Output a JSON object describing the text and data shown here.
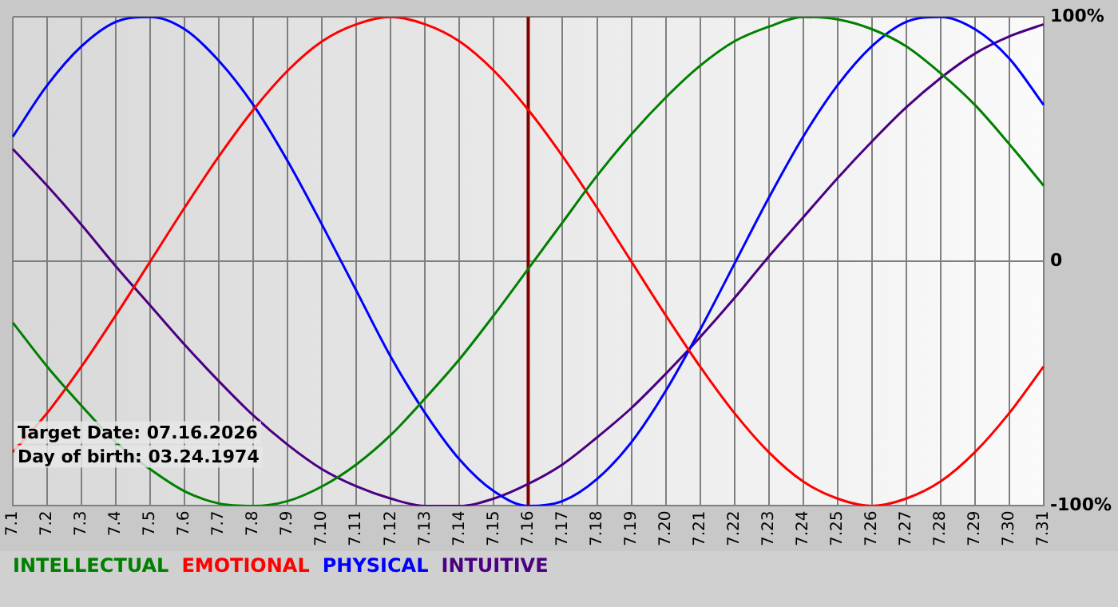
{
  "chart_data": {
    "type": "line",
    "categories": [
      "7.1",
      "7.2",
      "7.3",
      "7.4",
      "7.5",
      "7.6",
      "7.7",
      "7.8",
      "7.9",
      "7.10",
      "7.11",
      "7.12",
      "7.13",
      "7.14",
      "7.15",
      "7.16",
      "7.17",
      "7.18",
      "7.19",
      "7.20",
      "7.21",
      "7.22",
      "7.23",
      "7.24",
      "7.25",
      "7.26",
      "7.27",
      "7.28",
      "7.29",
      "7.30",
      "7.31"
    ],
    "series": [
      {
        "name": "INTELLECTUAL",
        "color": "#008000",
        "values": [
          -25,
          -43,
          -59,
          -74,
          -85,
          -94,
          -99,
          -100,
          -98,
          -92,
          -83,
          -71,
          -56,
          -40,
          -22,
          -3,
          16,
          35,
          52,
          67,
          80,
          90,
          96,
          100,
          99,
          95,
          88,
          77,
          64,
          48,
          31
        ]
      },
      {
        "name": "EMOTIONAL",
        "color": "#ff0000",
        "values": [
          -78,
          -62,
          -43,
          -22,
          0,
          22,
          43,
          62,
          78,
          90,
          97,
          100,
          97,
          90,
          78,
          62,
          43,
          22,
          0,
          -22,
          -43,
          -62,
          -78,
          -90,
          -97,
          -100,
          -97,
          -90,
          -78,
          -62,
          -43
        ]
      },
      {
        "name": "PHYSICAL",
        "color": "#0000ff",
        "values": [
          51,
          72,
          88,
          98,
          100,
          95,
          82,
          64,
          41,
          15,
          -12,
          -39,
          -62,
          -81,
          -94,
          -100,
          -98,
          -89,
          -74,
          -53,
          -28,
          -1,
          26,
          51,
          72,
          88,
          98,
          100,
          95,
          83,
          64
        ]
      },
      {
        "name": "INTUITIVE",
        "color": "#4b0082",
        "values": [
          46,
          31,
          15,
          -2,
          -18,
          -34,
          -49,
          -63,
          -75,
          -85,
          -92,
          -97,
          -100,
          -100,
          -97,
          -91,
          -83,
          -72,
          -60,
          -46,
          -31,
          -15,
          2,
          18,
          34,
          49,
          63,
          75,
          85,
          92,
          97
        ]
      }
    ],
    "ylim": [
      -100,
      100
    ],
    "yticks": [
      {
        "value": -100,
        "label": "-100%"
      },
      {
        "value": 0,
        "label": "0"
      },
      {
        "value": 100,
        "label": "100%"
      }
    ],
    "grid": true,
    "legend": "bottom left",
    "marker": "none",
    "line_style": "solid",
    "ref_lines": [
      {
        "axis": "x",
        "value": "7.16",
        "color": "#800000"
      }
    ],
    "annotations": [
      "Target Date: 07.16.2026",
      "Day of birth: 03.24.1974"
    ]
  }
}
